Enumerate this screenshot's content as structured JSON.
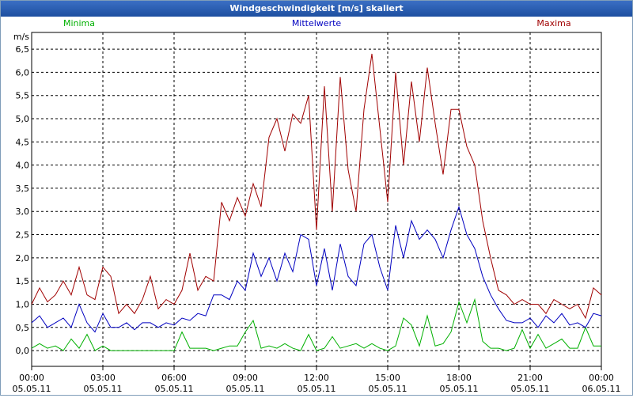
{
  "chart_data": {
    "type": "line",
    "title": "Windgeschwindigkeit [m/s] skaliert",
    "y_label": "m/s",
    "x": [
      0,
      20,
      40,
      60,
      80,
      100,
      120,
      140,
      160,
      180,
      200,
      220,
      240,
      260,
      280,
      300,
      320,
      340,
      360,
      380,
      400,
      420,
      440,
      460,
      480,
      500,
      520,
      540,
      560,
      580,
      600,
      620,
      640,
      660,
      680,
      700,
      720,
      740,
      760,
      780,
      800,
      820,
      840,
      860,
      880,
      900,
      920,
      940,
      960,
      980,
      1000,
      1020,
      1040,
      1060,
      1080,
      1100,
      1120,
      1140,
      1160,
      1180,
      1200,
      1220,
      1240,
      1260,
      1280,
      1300,
      1320,
      1340,
      1360,
      1380,
      1400,
      1420,
      1440
    ],
    "xlim": [
      0,
      1440
    ],
    "xticks": [
      {
        "value": 0,
        "label": "00:00\n05.05.11"
      },
      {
        "value": 180,
        "label": "03:00\n05.05.11"
      },
      {
        "value": 360,
        "label": "06:00\n05.05.11"
      },
      {
        "value": 540,
        "label": "09:00\n05.05.11"
      },
      {
        "value": 720,
        "label": "12:00\n05.05.11"
      },
      {
        "value": 900,
        "label": "15:00\n05.05.11"
      },
      {
        "value": 1080,
        "label": "18:00\n05.05.11"
      },
      {
        "value": 1260,
        "label": "21:00\n05.05.11"
      },
      {
        "value": 1440,
        "label": "00:00\n06.05.11"
      }
    ],
    "ylim": [
      -0.34,
      6.86
    ],
    "yticks": [
      {
        "value": 0,
        "label": "0,0"
      },
      {
        "value": 0.5,
        "label": "0,5"
      },
      {
        "value": 1,
        "label": "1,0"
      },
      {
        "value": 1.5,
        "label": "1,5"
      },
      {
        "value": 2,
        "label": "2,0"
      },
      {
        "value": 2.5,
        "label": "2,5"
      },
      {
        "value": 3,
        "label": "3,0"
      },
      {
        "value": 3.5,
        "label": "3,5"
      },
      {
        "value": 4,
        "label": "4,0"
      },
      {
        "value": 4.5,
        "label": "4,5"
      },
      {
        "value": 5,
        "label": "5,0"
      },
      {
        "value": 5.5,
        "label": "5,5"
      },
      {
        "value": 6,
        "label": "6,0"
      },
      {
        "value": 6.5,
        "label": "6,5"
      }
    ],
    "grid": true,
    "series": [
      {
        "name": "Minima",
        "color": "#00b000",
        "values": [
          0.05,
          0.15,
          0.05,
          0.1,
          0,
          0.25,
          0.05,
          0.35,
          0,
          0.1,
          0,
          0,
          0,
          0,
          0,
          0,
          0,
          0,
          0,
          0.4,
          0.05,
          0.05,
          0.05,
          0,
          0.05,
          0.1,
          0.1,
          0.4,
          0.65,
          0.05,
          0.1,
          0.05,
          0.15,
          0.05,
          0,
          0.35,
          0,
          0.05,
          0.3,
          0.05,
          0.1,
          0.15,
          0.05,
          0.15,
          0.05,
          0,
          0.1,
          0.7,
          0.55,
          0.1,
          0.75,
          0.1,
          0.15,
          0.4,
          1.05,
          0.6,
          1.1,
          0.2,
          0.05,
          0.05,
          0,
          0.05,
          0.45,
          0.05,
          0.35,
          0.05,
          0.15,
          0.25,
          0.05,
          0.05,
          0.5,
          0.1,
          0.1
        ]
      },
      {
        "name": "Mittelwerte",
        "color": "#0000c0",
        "values": [
          0.6,
          0.75,
          0.5,
          0.6,
          0.7,
          0.5,
          1.0,
          0.6,
          0.4,
          0.8,
          0.5,
          0.5,
          0.6,
          0.45,
          0.6,
          0.6,
          0.5,
          0.6,
          0.55,
          0.7,
          0.65,
          0.8,
          0.75,
          1.2,
          1.2,
          1.1,
          1.5,
          1.3,
          2.1,
          1.6,
          2.0,
          1.5,
          2.1,
          1.7,
          2.5,
          2.4,
          1.4,
          2.2,
          1.3,
          2.3,
          1.6,
          1.4,
          2.3,
          2.5,
          1.8,
          1.3,
          2.7,
          2.0,
          2.8,
          2.4,
          2.6,
          2.4,
          2.0,
          2.6,
          3.1,
          2.5,
          2.2,
          1.6,
          1.2,
          0.9,
          0.65,
          0.6,
          0.6,
          0.7,
          0.5,
          0.75,
          0.6,
          0.8,
          0.55,
          0.6,
          0.5,
          0.8,
          0.75
        ]
      },
      {
        "name": "Maxima",
        "color": "#a00000",
        "values": [
          1.0,
          1.35,
          1.05,
          1.2,
          1.5,
          1.2,
          1.8,
          1.2,
          1.1,
          1.8,
          1.6,
          0.8,
          1.0,
          0.8,
          1.1,
          1.6,
          0.9,
          1.1,
          1.0,
          1.3,
          2.1,
          1.3,
          1.6,
          1.5,
          3.2,
          2.8,
          3.3,
          2.9,
          3.6,
          3.1,
          4.6,
          5.0,
          4.3,
          5.1,
          4.9,
          5.5,
          2.6,
          5.7,
          3.0,
          5.9,
          3.9,
          3.0,
          5.2,
          6.4,
          4.8,
          3.2,
          6.0,
          4.0,
          5.8,
          4.5,
          6.1,
          4.9,
          3.8,
          5.2,
          5.2,
          4.4,
          4.0,
          2.8,
          2.0,
          1.3,
          1.2,
          1.0,
          1.1,
          1.0,
          1.0,
          0.8,
          1.1,
          1.0,
          0.9,
          1.0,
          0.7,
          1.35,
          1.2
        ]
      }
    ]
  }
}
